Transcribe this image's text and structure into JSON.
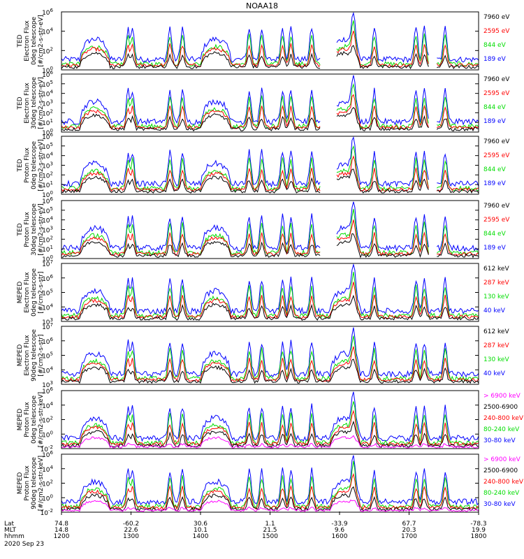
{
  "title": "NOAA18",
  "date": "2020 Sep 23",
  "colors": {
    "blue": "#0000ff",
    "red": "#ff0000",
    "green": "#00dd00",
    "black": "#000000",
    "magenta": "#ff00ff"
  },
  "time_axis": {
    "row_labels": [
      "Lat",
      "MLT",
      "hhmm"
    ],
    "columns": [
      {
        "lat": "74.8",
        "mlt": "14.8",
        "hhmm": "1200"
      },
      {
        "lat": "-60.2",
        "mlt": "22.6",
        "hhmm": "1300"
      },
      {
        "lat": "30.6",
        "mlt": "10.1",
        "hhmm": "1400"
      },
      {
        "lat": "1.1",
        "mlt": "21.5",
        "hhmm": "1500"
      },
      {
        "lat": "-33.9",
        "mlt": "9.6",
        "hhmm": "1600"
      },
      {
        "lat": "67.7",
        "mlt": "20.3",
        "hhmm": "1700"
      },
      {
        "lat": "-78.3",
        "mlt": "19.9",
        "hhmm": "1800"
      }
    ]
  },
  "chart_data": [
    {
      "type": "line",
      "ylabel": [
        "TED",
        "Electron Flux",
        "0deg telescope",
        "[#/cm2-s-str-eV]"
      ],
      "ylog": [
        0,
        6
      ],
      "ytick_exps": [
        0,
        2,
        4,
        6
      ],
      "legend": [
        {
          "name": "7960 eV",
          "color": "black"
        },
        {
          "name": "2595 eV",
          "color": "red"
        },
        {
          "name": "844 eV",
          "color": "green"
        },
        {
          "name": "189 eV",
          "color": "blue"
        }
      ]
    },
    {
      "type": "line",
      "ylabel": [
        "TED",
        "Electron Flux",
        "30deg telescope",
        "[#/cm2-s-str-eV]"
      ],
      "ylog": [
        0,
        6
      ],
      "ytick_exps": [
        0,
        1,
        2,
        3,
        4,
        5,
        6
      ],
      "legend": [
        {
          "name": "7960 eV",
          "color": "black"
        },
        {
          "name": "2595 eV",
          "color": "red"
        },
        {
          "name": "844 eV",
          "color": "green"
        },
        {
          "name": "189 eV",
          "color": "blue"
        }
      ]
    },
    {
      "type": "line",
      "ylabel": [
        "TED",
        "Proton Flux",
        "0deg telescope",
        "[#/cm2-s-str-eV]"
      ],
      "ylog": [
        0,
        6
      ],
      "ytick_exps": [
        0,
        1,
        2,
        3,
        4,
        5,
        6
      ],
      "legend": [
        {
          "name": "7960 eV",
          "color": "black"
        },
        {
          "name": "2595 eV",
          "color": "red"
        },
        {
          "name": "844 eV",
          "color": "green"
        },
        {
          "name": "189 eV",
          "color": "blue"
        }
      ]
    },
    {
      "type": "line",
      "ylabel": [
        "TED",
        "Proton Flux",
        "30deg telescope",
        "[#/cm2-s-str-eV]"
      ],
      "ylog": [
        0,
        6
      ],
      "ytick_exps": [
        0,
        1,
        2,
        3,
        4,
        5,
        6
      ],
      "legend": [
        {
          "name": "7960 eV",
          "color": "black"
        },
        {
          "name": "2595 eV",
          "color": "red"
        },
        {
          "name": "844 eV",
          "color": "green"
        },
        {
          "name": "189 eV",
          "color": "blue"
        }
      ]
    },
    {
      "type": "line",
      "ylabel": [
        "MEPED",
        "Electron Flux",
        "0deg telescope",
        "[#/cm2-s-str]"
      ],
      "ylog": [
        3,
        7
      ],
      "ytick_exps": [
        3,
        4,
        5,
        6,
        7
      ],
      "legend": [
        {
          "name": "612 keV",
          "color": "black"
        },
        {
          "name": "287 keV",
          "color": "red"
        },
        {
          "name": "130 keV",
          "color": "green"
        },
        {
          "name": "40 keV",
          "color": "blue"
        }
      ]
    },
    {
      "type": "line",
      "ylabel": [
        "MEPED",
        "Electron Flux",
        "90deg telescope",
        "[#/cm2-s-str]"
      ],
      "ylog": [
        3,
        7
      ],
      "ytick_exps": [
        3,
        4,
        5,
        6,
        7
      ],
      "legend": [
        {
          "name": "612 keV",
          "color": "black"
        },
        {
          "name": "287 keV",
          "color": "red"
        },
        {
          "name": "130 keV",
          "color": "green"
        },
        {
          "name": "40 keV",
          "color": "blue"
        }
      ]
    },
    {
      "type": "line",
      "ylabel": [
        "MEPED",
        "Proton Flux",
        "0deg telescope",
        "[#/cm2-s-str-keV]"
      ],
      "ylog": [
        -2,
        6
      ],
      "ytick_exps": [
        -2,
        0,
        2,
        4,
        6
      ],
      "legend": [
        {
          "name": "> 6900 keV",
          "color": "magenta"
        },
        {
          "name": "2500-6900",
          "color": "black"
        },
        {
          "name": "240-800 keV",
          "color": "red"
        },
        {
          "name": "80-240 keV",
          "color": "green"
        },
        {
          "name": "30-80 keV",
          "color": "blue"
        }
      ]
    },
    {
      "type": "line",
      "ylabel": [
        "MEPED",
        "Proton Flux",
        "90deg telescope",
        "[#/cm2-s-str-keV]"
      ],
      "ylog": [
        -2,
        6
      ],
      "ytick_exps": [
        -2,
        0,
        2,
        4,
        6
      ],
      "legend": [
        {
          "name": "> 6900 keV",
          "color": "magenta"
        },
        {
          "name": "2500-6900",
          "color": "black"
        },
        {
          "name": "240-800 keV",
          "color": "red"
        },
        {
          "name": "80-240 keV",
          "color": "green"
        },
        {
          "name": "30-80 keV",
          "color": "blue"
        }
      ]
    }
  ]
}
